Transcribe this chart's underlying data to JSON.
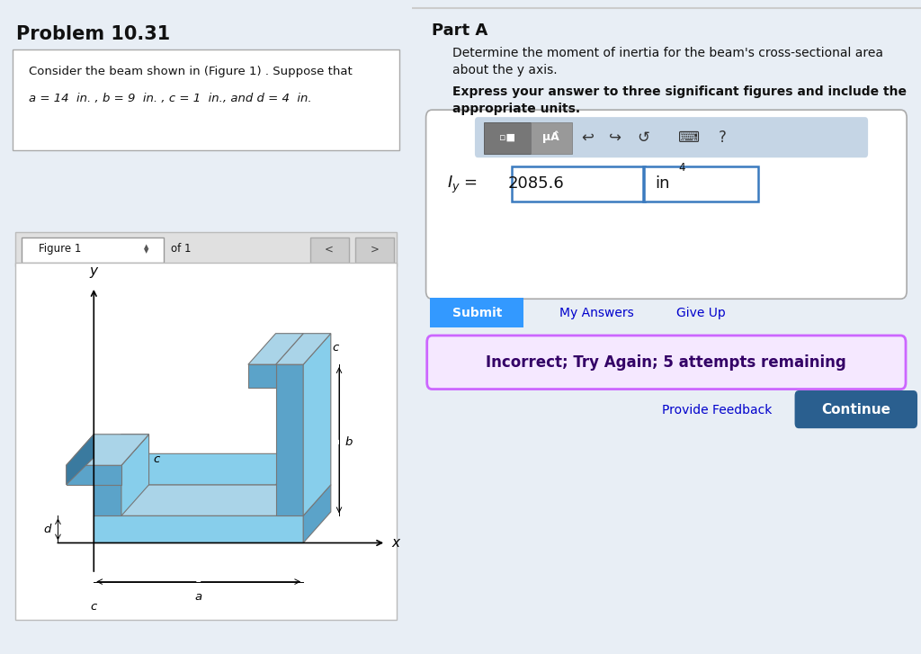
{
  "title_left": "Problem 10.31",
  "problem_text_line1": "Consider the beam shown in (Figure 1) . Suppose that",
  "problem_text_line2_parts": [
    [
      "a",
      true
    ],
    [
      " = 14  in. , ",
      false
    ],
    [
      "b",
      true
    ],
    [
      " = 9  in. , ",
      false
    ],
    [
      "c",
      true
    ],
    [
      " = 1  in., and ",
      false
    ],
    [
      "d",
      true
    ],
    [
      " = 4  in.",
      false
    ]
  ],
  "figure_label": "Figure 1",
  "figure_of": "of 1",
  "part_a_title": "Part A",
  "part_a_desc1": "Determine the moment of inertia for the beam's cross-sectional area",
  "part_a_desc2": "about the y axis.",
  "bold_line1": "Express your answer to three significant figures and include the",
  "bold_line2": "appropriate units.",
  "answer_value": "2085.6",
  "answer_units": "in",
  "answer_exp": "4",
  "submit_text": "Submit",
  "my_answers_text": "My Answers",
  "give_up_text": "Give Up",
  "incorrect_text": "Incorrect; Try Again; 5 attempts remaining",
  "provide_feedback_text": "Provide Feedback",
  "continue_text": "Continue",
  "left_bg": "#e8eef5",
  "right_bg": "#ffffff",
  "beam_light": "#87ceeb",
  "beam_mid": "#5ba3c9",
  "beam_dark": "#3a7a9f",
  "beam_top": "#aad4e8",
  "toolbar_bg": "#c5d5e5",
  "icon1_bg": "#777777",
  "icon2_bg": "#999999",
  "submit_bg": "#3399ff",
  "incorrect_bg": "#f5e8ff",
  "incorrect_border": "#cc66ff",
  "incorrect_text_color": "#330066",
  "continue_bg": "#2a5f8f",
  "link_color": "#0000cc",
  "input_border": "#3a7abf",
  "divider_color": "#cccccc"
}
